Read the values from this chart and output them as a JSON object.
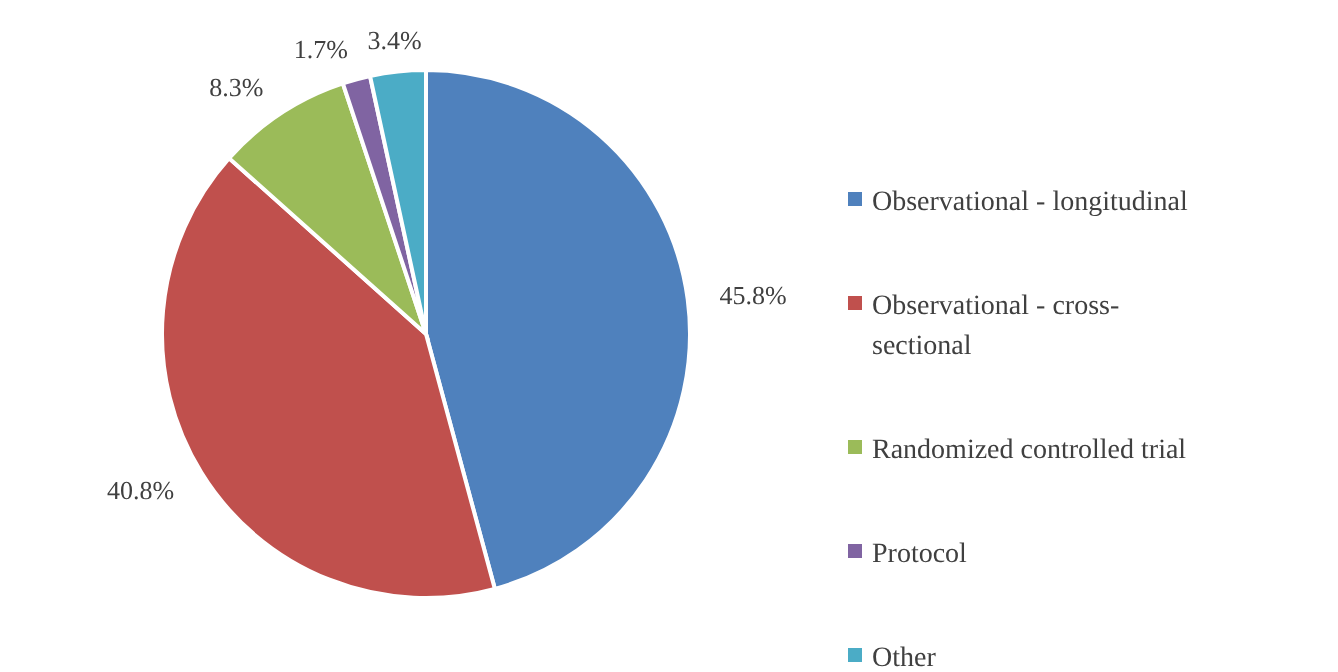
{
  "chart_data": {
    "type": "pie",
    "categories": [
      "Observational - longitudinal",
      "Observational - cross-sectional",
      "Randomized controlled trial",
      "Protocol",
      "Other"
    ],
    "values": [
      45.8,
      40.8,
      8.3,
      1.7,
      3.4
    ],
    "colors": [
      "#4f81bd",
      "#c0504d",
      "#9bbb59",
      "#8064a2",
      "#4bacc6"
    ],
    "value_labels": [
      "45.8%",
      "40.8%",
      "8.3%",
      "1.7%",
      "3.4%"
    ],
    "legend": "right"
  }
}
